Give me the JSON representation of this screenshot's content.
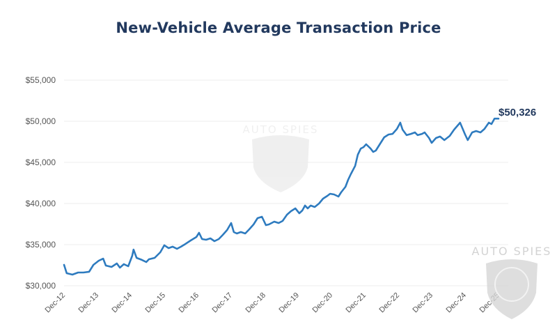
{
  "chart_data": {
    "type": "line",
    "title": "New-Vehicle Average Transaction Price",
    "xlabel": "",
    "ylabel": "",
    "ylim": [
      30000,
      55000
    ],
    "yticks": [
      30000,
      35000,
      40000,
      45000,
      50000,
      55000
    ],
    "ytick_labels": [
      "$30,000",
      "$35,000",
      "$40,000",
      "$45,000",
      "$50,000",
      "$55,000"
    ],
    "xticks": [
      "Dec-12",
      "Dec-13",
      "Dec-14",
      "Dec-15",
      "Dec-16",
      "Dec-17",
      "Dec-18",
      "Dec-19",
      "Dec-20",
      "Dec-21",
      "Dec-22",
      "Dec-23",
      "Dec-24",
      "Dec-25"
    ],
    "grid": "horizontal",
    "legend": "none",
    "end_label": "$50,326",
    "series": [
      {
        "name": "Average Transaction Price",
        "color": "#2e7bbf",
        "x_years_since_dec12": [
          0,
          0.08,
          0.25,
          0.42,
          0.58,
          0.75,
          0.88,
          1.04,
          1.17,
          1.25,
          1.42,
          1.58,
          1.67,
          1.79,
          1.92,
          2.04,
          2.08,
          2.17,
          2.33,
          2.46,
          2.54,
          2.71,
          2.88,
          3.0,
          3.13,
          3.25,
          3.38,
          3.5,
          3.63,
          3.79,
          3.96,
          4.04,
          4.13,
          4.25,
          4.38,
          4.5,
          4.63,
          4.75,
          4.88,
          5.0,
          5.08,
          5.17,
          5.29,
          5.42,
          5.54,
          5.67,
          5.79,
          5.92,
          6.04,
          6.13,
          6.29,
          6.42,
          6.54,
          6.67,
          6.79,
          6.92,
          7.04,
          7.13,
          7.21,
          7.29,
          7.38,
          7.5,
          7.63,
          7.75,
          7.88,
          7.96,
          8.08,
          8.21,
          8.29,
          8.42,
          8.5,
          8.58,
          8.71,
          8.79,
          8.88,
          8.96,
          9.04,
          9.17,
          9.25,
          9.33,
          9.46,
          9.58,
          9.71,
          9.83,
          9.96,
          10.06,
          10.13,
          10.25,
          10.38,
          10.5,
          10.58,
          10.71,
          10.79,
          10.92,
          11.0,
          11.13,
          11.25,
          11.38,
          11.54,
          11.67,
          11.85,
          12.0,
          12.08,
          12.21,
          12.33,
          12.46,
          12.58,
          12.71,
          12.79,
          12.88,
          13.0
        ],
        "values": [
          32540,
          31525,
          31360,
          31610,
          31610,
          31700,
          32540,
          33050,
          33300,
          32460,
          32290,
          32710,
          32200,
          32630,
          32370,
          33640,
          34400,
          33390,
          33140,
          32880,
          33220,
          33390,
          34070,
          34920,
          34580,
          34750,
          34490,
          34750,
          35080,
          35510,
          35930,
          36440,
          35680,
          35590,
          35760,
          35420,
          35680,
          36190,
          36780,
          37630,
          36530,
          36360,
          36530,
          36360,
          36860,
          37460,
          38220,
          38390,
          37370,
          37460,
          37800,
          37630,
          37880,
          38640,
          39070,
          39410,
          38810,
          39150,
          39750,
          39410,
          39750,
          39580,
          40000,
          40590,
          40930,
          41190,
          41100,
          40850,
          41360,
          42030,
          42880,
          43560,
          44580,
          45930,
          46690,
          46860,
          47200,
          46690,
          46270,
          46440,
          47290,
          48050,
          48390,
          48470,
          49070,
          49830,
          48980,
          48310,
          48470,
          48640,
          48310,
          48470,
          48640,
          47970,
          47370,
          47970,
          48140,
          47710,
          48220,
          48980,
          49830,
          48390,
          47710,
          48640,
          48810,
          48640,
          49070,
          49830,
          49660,
          50326,
          50326
        ]
      }
    ]
  },
  "watermark": {
    "text": "AUTO SPIES",
    "icon": "shield-globe-icon"
  }
}
